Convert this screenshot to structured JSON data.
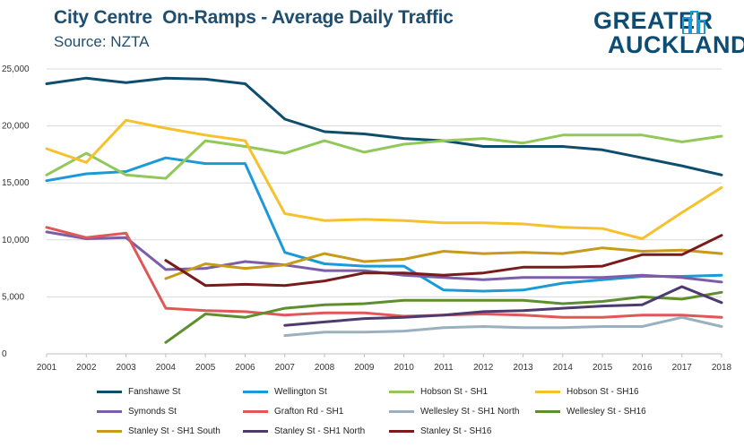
{
  "header": {
    "title": "City Centre  On-Ramps - Average Daily Traffic",
    "subtitle": "Source: NZTA",
    "logo_line1": "GREATER",
    "logo_line2": "AUCKLAND"
  },
  "colors": {
    "title": "#1f4e6e",
    "logo": "#0e4d73",
    "grid": "#d9d9d9"
  },
  "chart_data": {
    "type": "line",
    "title": "City Centre  On-Ramps - Average Daily Traffic",
    "subtitle": "Source: NZTA",
    "xlabel": "",
    "ylabel": "",
    "x": [
      2001,
      2002,
      2003,
      2004,
      2005,
      2006,
      2007,
      2008,
      2009,
      2010,
      2011,
      2012,
      2013,
      2014,
      2015,
      2016,
      2017,
      2018
    ],
    "x_tick_labels": [
      "2001",
      "2002",
      "2003",
      "2004",
      "2005",
      "2006",
      "2007",
      "2008",
      "2009",
      "2010",
      "2011",
      "2012",
      "2013",
      "2014",
      "2015",
      "2016",
      "2017",
      "2018"
    ],
    "ylim": [
      0,
      25000
    ],
    "y_ticks": [
      0,
      5000,
      10000,
      15000,
      20000,
      25000
    ],
    "y_tick_labels": [
      "0",
      "5,000",
      "10,000",
      "15,000",
      "20,000",
      "25,000"
    ],
    "grid": true,
    "legend_position": "bottom",
    "series": [
      {
        "name": "Fanshawe St",
        "color": "#0e4d6e",
        "values": [
          23700,
          24200,
          23800,
          24200,
          24100,
          23700,
          20600,
          19500,
          19300,
          18900,
          18700,
          18200,
          18200,
          18200,
          17900,
          17200,
          16500,
          15700
        ]
      },
      {
        "name": "Wellington St",
        "color": "#1a9ad6",
        "values": [
          15200,
          15800,
          16000,
          17200,
          16700,
          16700,
          8900,
          7900,
          7700,
          7700,
          5600,
          5500,
          5600,
          6200,
          6500,
          6800,
          6800,
          6900
        ]
      },
      {
        "name": "Hobson St - SH1",
        "color": "#92c85a",
        "values": [
          15700,
          17600,
          15700,
          15400,
          18700,
          18200,
          17600,
          18700,
          17700,
          18400,
          18700,
          18900,
          18500,
          19200,
          19200,
          19200,
          18600,
          19100
        ]
      },
      {
        "name": "Hobson St - SH16",
        "color": "#f5c22d",
        "values": [
          18000,
          16800,
          20500,
          19800,
          19200,
          18700,
          12300,
          11700,
          11800,
          11700,
          11500,
          11500,
          11400,
          11100,
          11000,
          10100,
          12400,
          14600
        ]
      },
      {
        "name": "Symonds St",
        "color": "#7b5ea7",
        "values": [
          10700,
          10100,
          10200,
          7400,
          7500,
          8100,
          7800,
          7300,
          7300,
          6900,
          6700,
          6500,
          6700,
          6700,
          6700,
          6900,
          6700,
          6300
        ]
      },
      {
        "name": "Grafton Rd - SH1",
        "color": "#e05757",
        "values": [
          11100,
          10200,
          10600,
          4000,
          3800,
          3700,
          3400,
          3600,
          3600,
          3300,
          3400,
          3500,
          3400,
          3200,
          3200,
          3400,
          3400,
          3200
        ]
      },
      {
        "name": "Wellesley St - SH1 North",
        "color": "#9ab0bf",
        "values": [
          null,
          null,
          null,
          null,
          null,
          null,
          1600,
          1900,
          1900,
          2000,
          2300,
          2400,
          2300,
          2300,
          2400,
          2400,
          3200,
          2400
        ]
      },
      {
        "name": "Wellesley St - SH16",
        "color": "#5d8f2f",
        "values": [
          null,
          null,
          null,
          1000,
          3500,
          3200,
          4000,
          4300,
          4400,
          4700,
          4700,
          4700,
          4700,
          4400,
          4600,
          5000,
          4800,
          5400
        ]
      },
      {
        "name": "Stanley St - SH1 South",
        "color": "#c79a1c",
        "values": [
          null,
          null,
          null,
          6600,
          7900,
          7500,
          7800,
          8800,
          8100,
          8300,
          9000,
          8800,
          8900,
          8800,
          9300,
          9000,
          9100,
          8800
        ]
      },
      {
        "name": "Stanley St - SH1 North",
        "color": "#4e3b6e",
        "values": [
          null,
          null,
          null,
          null,
          null,
          null,
          2500,
          2800,
          3100,
          3200,
          3400,
          3700,
          3800,
          4000,
          4200,
          4300,
          5900,
          4500
        ]
      },
      {
        "name": "Stanley St - SH16",
        "color": "#7a1b1b",
        "values": [
          null,
          null,
          null,
          8200,
          6000,
          6100,
          6000,
          6400,
          7100,
          7100,
          6900,
          7100,
          7600,
          7600,
          7700,
          8700,
          8700,
          10400
        ]
      }
    ]
  }
}
